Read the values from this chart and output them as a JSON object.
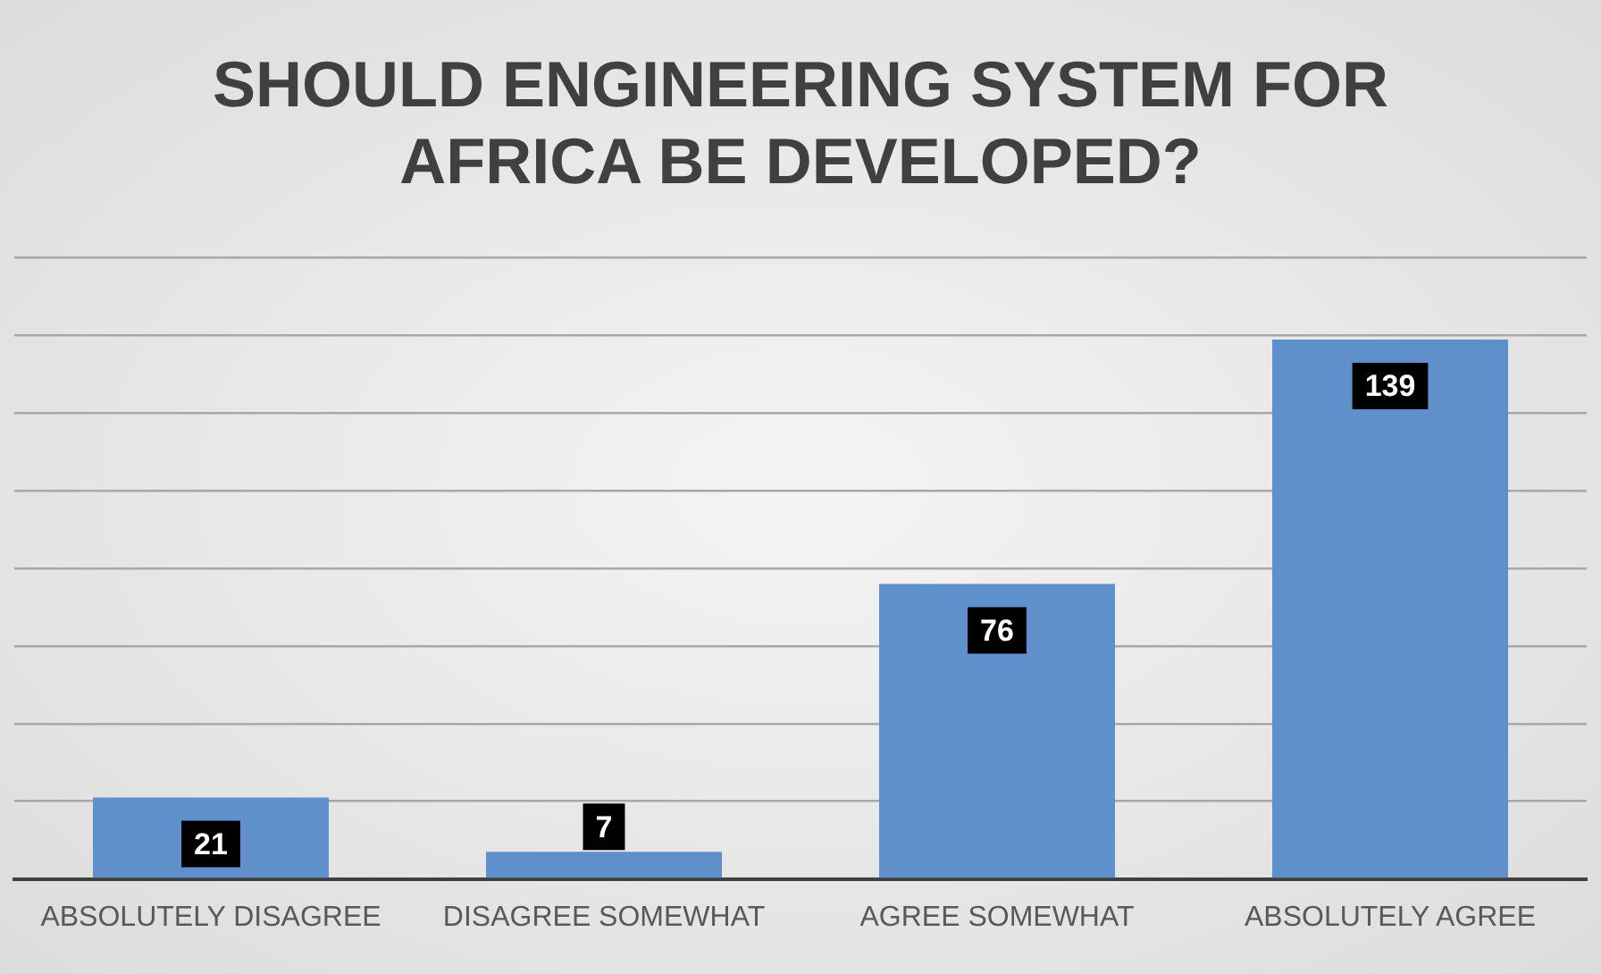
{
  "chart_data": {
    "type": "bar",
    "title": "SHOULD ENGINEERING SYSTEM FOR AFRICA BE DEVELOPED?",
    "categories": [
      "ABSOLUTELY DISAGREE",
      "DISAGREE SOMEWHAT",
      "AGREE SOMEWHAT",
      "ABSOLUTELY AGREE"
    ],
    "values": [
      21,
      7,
      76,
      139
    ],
    "color": "#5f90cc",
    "data_labels": true,
    "grid": "y",
    "tick_labels": "x",
    "legend": false,
    "ylim": [
      0,
      160
    ],
    "yticks": [
      {
        "value": 0,
        "label": null
      },
      {
        "value": 20,
        "label": null
      },
      {
        "value": 40,
        "label": null
      },
      {
        "value": 60,
        "label": null
      },
      {
        "value": 80,
        "label": null
      },
      {
        "value": 100,
        "label": null
      },
      {
        "value": 120,
        "label": null
      },
      {
        "value": 140,
        "label": null
      },
      {
        "value": 160,
        "label": null
      }
    ]
  }
}
